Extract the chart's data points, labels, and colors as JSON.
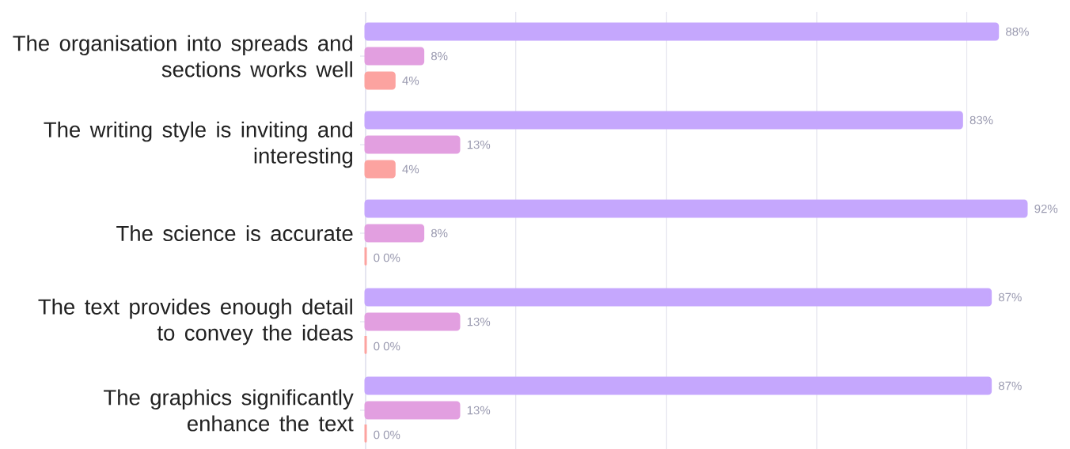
{
  "chart_data": {
    "type": "bar",
    "orientation": "horizontal",
    "categories": [
      "The organisation into spreads and sections works well",
      "The writing style is inviting and interesting",
      "The science is accurate",
      "The text provides enough detail to convey the ideas",
      "The graphics significantly enhance the text"
    ],
    "series": [
      {
        "color": "#c5a7fd",
        "values": [
          88,
          83,
          92,
          87,
          87
        ],
        "value_labels": [
          "88%",
          "83%",
          "92%",
          "87%",
          "87%"
        ]
      },
      {
        "color": "#e29fe0",
        "values": [
          8,
          13,
          8,
          13,
          13
        ],
        "value_labels": [
          "8%",
          "13%",
          "8%",
          "13%",
          "13%"
        ]
      },
      {
        "color": "#fca3a0",
        "values": [
          4,
          4,
          0,
          0,
          0
        ],
        "value_labels": [
          "4%",
          "4%",
          "0 0%",
          "0 0%",
          "0 0%"
        ]
      }
    ],
    "xlim": [
      0,
      92
    ],
    "grid": "x",
    "xticks": [
      {
        "value": 0,
        "label": null
      },
      {
        "value": 20.9,
        "label": null
      },
      {
        "value": 41.9,
        "label": null
      },
      {
        "value": 62.8,
        "label": null
      },
      {
        "value": 83.7,
        "label": null
      }
    ]
  }
}
